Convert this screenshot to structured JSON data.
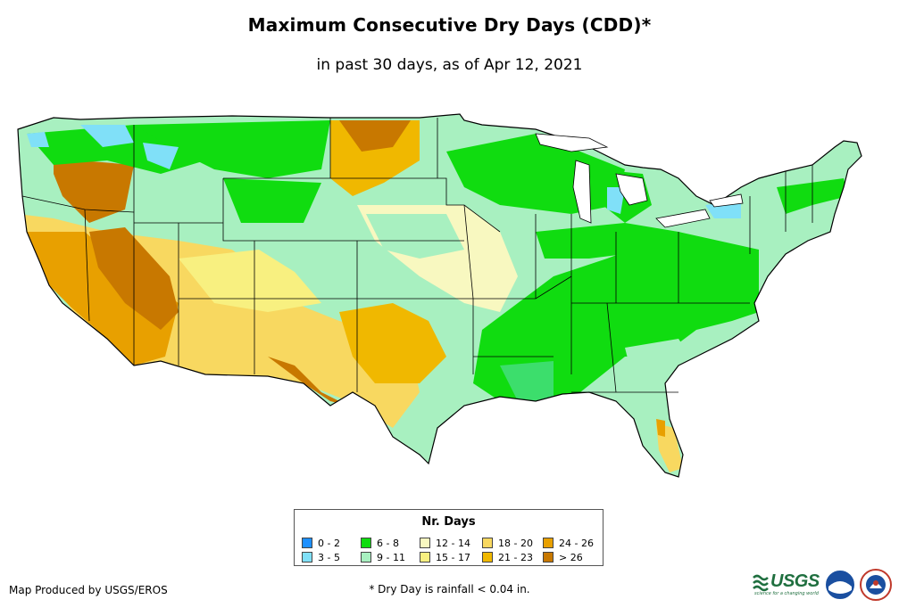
{
  "title": "Maximum Consecutive Dry Days (CDD)*",
  "subtitle": "in past 30 days, as of Apr 12, 2021",
  "legend": {
    "title": "Nr. Days",
    "items": [
      {
        "label": "0 - 2",
        "color": "#1e90ff"
      },
      {
        "label": "3 - 5",
        "color": "#80e0f8"
      },
      {
        "label": "6 - 8",
        "color": "#10dc10"
      },
      {
        "label": "9 - 11",
        "color": "#a8f0c0"
      },
      {
        "label": "12 - 14",
        "color": "#f8f8c0"
      },
      {
        "label": "15 - 17",
        "color": "#f8f080"
      },
      {
        "label": "18 - 20",
        "color": "#f8d860"
      },
      {
        "label": "21 - 23",
        "color": "#f0b800"
      },
      {
        "label": "24 - 26",
        "color": "#e8a000"
      },
      {
        "label": "> 26",
        "color": "#c87800"
      }
    ]
  },
  "credit": "Map Produced by USGS/EROS",
  "footnote": "* Dry Day is rainfall < 0.04 in.",
  "logos": {
    "usgs": "USGS",
    "usgs_tagline": "science for a changing world",
    "noaa": "noaa-logo",
    "nws": "nws-logo"
  }
}
